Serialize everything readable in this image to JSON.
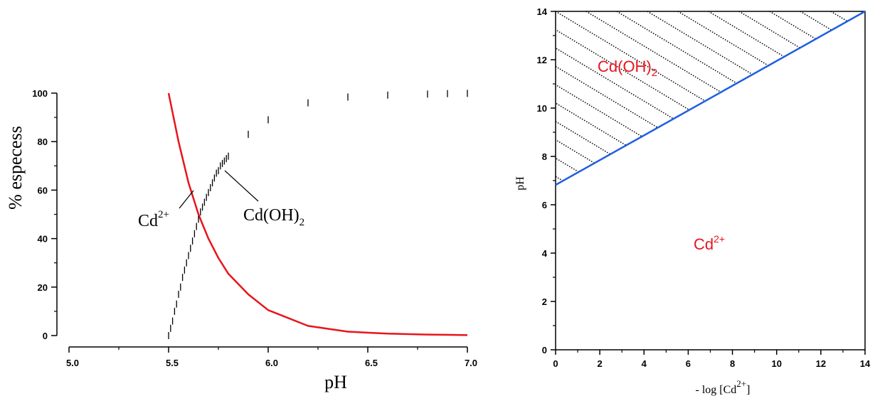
{
  "chart_data": [
    {
      "type": "line",
      "title": "",
      "xlabel": "pH",
      "ylabel": "% especess",
      "xlim": [
        5.0,
        7.0
      ],
      "ylim": [
        0,
        100
      ],
      "xticks": [
        "5.0",
        "5.5",
        "6.0",
        "6.5",
        "7.0"
      ],
      "yticks": [
        "0",
        "20",
        "40",
        "60",
        "80",
        "100"
      ],
      "grid": false,
      "series": [
        {
          "name": "Cd2+",
          "label_main": "Cd",
          "label_sup": "2+",
          "style": "solid",
          "color": "#e8141c",
          "x": [
            5.5,
            5.55,
            5.6,
            5.65,
            5.7,
            5.75,
            5.8,
            5.9,
            6.0,
            6.2,
            6.4,
            6.6,
            6.8,
            7.0
          ],
          "y": [
            100,
            80,
            63,
            50,
            40,
            32,
            25.5,
            17,
            10.5,
            4,
            1.6,
            0.8,
            0.4,
            0.2
          ]
        },
        {
          "name": "Cd(OH)2",
          "label_main": "Cd(OH)",
          "label_sub": "2",
          "style": "dashed",
          "color": "#000000",
          "x": [
            5.5,
            5.51,
            5.52,
            5.53,
            5.54,
            5.55,
            5.56,
            5.57,
            5.58,
            5.59,
            5.6,
            5.61,
            5.62,
            5.63,
            5.64,
            5.65,
            5.66,
            5.67,
            5.68,
            5.69,
            5.7,
            5.71,
            5.72,
            5.73,
            5.74,
            5.75,
            5.76,
            5.77,
            5.78,
            5.79,
            5.8,
            5.9,
            6.0,
            6.2,
            6.4,
            6.6,
            6.8,
            6.9,
            7.0
          ],
          "y": [
            0,
            3,
            6,
            10,
            13,
            17,
            20,
            24,
            27,
            30,
            33,
            36,
            39,
            42,
            45,
            48,
            51,
            53,
            55,
            57,
            59,
            61,
            63,
            65,
            67,
            68,
            70,
            71,
            72,
            73,
            74,
            83,
            89,
            96,
            98.4,
            99.2,
            99.6,
            99.8,
            99.9
          ]
        }
      ]
    },
    {
      "type": "line",
      "title": "",
      "xlabel_main": "- log [Cd",
      "xlabel_sup": "2+",
      "xlabel_end": "]",
      "ylabel": "pH",
      "xlim": [
        0,
        14
      ],
      "ylim": [
        0,
        14
      ],
      "xticks": [
        "0",
        "2",
        "4",
        "6",
        "8",
        "10",
        "12",
        "14"
      ],
      "yticks": [
        "0",
        "2",
        "4",
        "6",
        "8",
        "10",
        "12",
        "14"
      ],
      "grid": false,
      "series": [
        {
          "name": "boundary",
          "color": "#1f5fe0",
          "x": [
            0,
            14
          ],
          "y": [
            6.82,
            14
          ]
        }
      ],
      "regions": [
        {
          "label_main": "Cd(OH)",
          "label_sub": "2",
          "color": "#e8141c",
          "hatched": true
        },
        {
          "label_main": "Cd",
          "label_sup": "2+",
          "color": "#e8141c",
          "hatched": false
        }
      ]
    }
  ]
}
